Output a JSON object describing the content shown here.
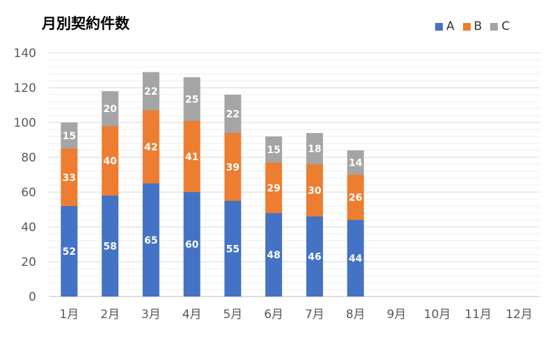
{
  "chart_data": {
    "type": "bar",
    "stacked": true,
    "title": "月別契約件数",
    "categories": [
      "1月",
      "2月",
      "3月",
      "4月",
      "5月",
      "6月",
      "7月",
      "8月",
      "9月",
      "10月",
      "11月",
      "12月"
    ],
    "series": [
      {
        "name": "A",
        "color": "#4472C4",
        "values": [
          52,
          58,
          65,
          60,
          55,
          48,
          46,
          44,
          null,
          null,
          null,
          null
        ]
      },
      {
        "name": "B",
        "color": "#ED7D31",
        "values": [
          33,
          40,
          42,
          41,
          39,
          29,
          30,
          26,
          null,
          null,
          null,
          null
        ]
      },
      {
        "name": "C",
        "color": "#A5A5A5",
        "values": [
          15,
          20,
          22,
          25,
          22,
          15,
          18,
          14,
          null,
          null,
          null,
          null
        ]
      }
    ],
    "ylim": [
      0,
      140
    ],
    "yticks": [
      0,
      20,
      40,
      60,
      80,
      100,
      120,
      140
    ],
    "legend_position": "top-right",
    "grid": true
  }
}
